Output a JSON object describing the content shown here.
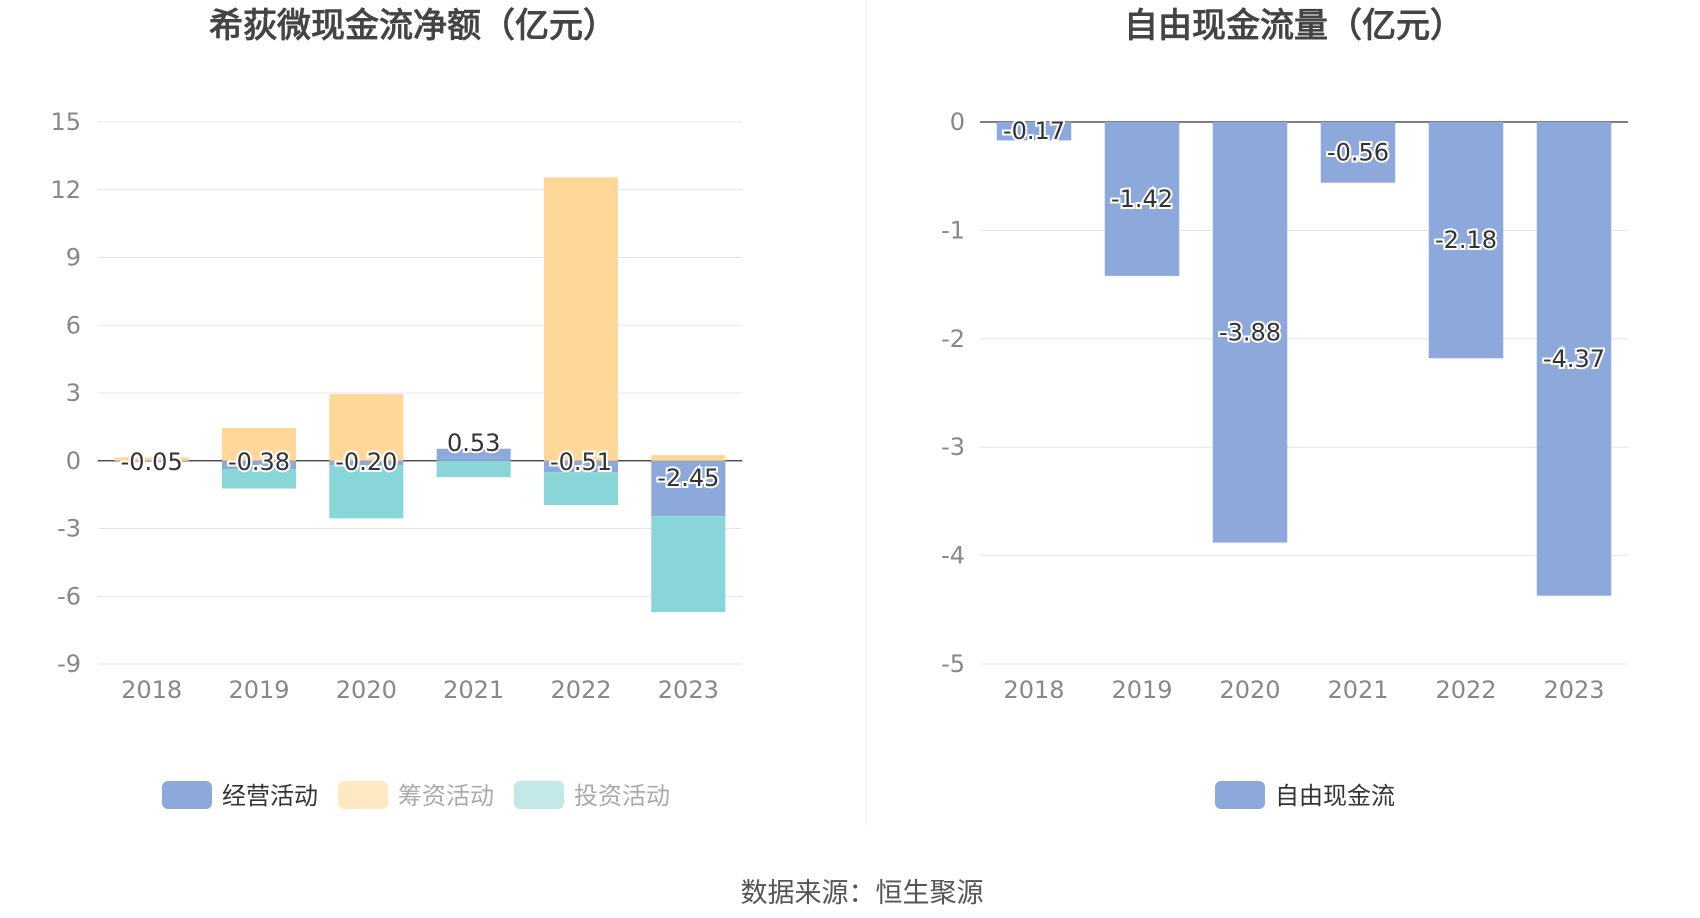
{
  "charts": [
    {
      "title": "希荻微现金流净额（亿元）",
      "legend": [
        {
          "name": "经营活动",
          "color": "#8DA9DB",
          "muted": false
        },
        {
          "name": "筹资活动",
          "color": "#FFE9C2",
          "muted": true
        },
        {
          "name": "投资活动",
          "color": "#C3E8E8",
          "muted": true
        }
      ]
    },
    {
      "title": "自由现金流量（亿元）",
      "legend": [
        {
          "name": "自由现金流",
          "color": "#8DA9DB",
          "muted": false
        }
      ]
    }
  ],
  "source": "数据来源：恒生聚源",
  "chart_data": [
    {
      "type": "bar",
      "stacked": true,
      "title": "希荻微现金流净额（亿元）",
      "categories": [
        "2018",
        "2019",
        "2020",
        "2021",
        "2022",
        "2023"
      ],
      "ylim": [
        -9,
        15
      ],
      "yticks": [
        15,
        12,
        9,
        6,
        3,
        0,
        -3,
        -6,
        -9
      ],
      "grid": true,
      "legend_position": "bottom",
      "series": [
        {
          "name": "经营活动",
          "color": "#8DA9DB",
          "values": [
            -0.05,
            -0.38,
            -0.2,
            0.53,
            -0.51,
            -2.45
          ],
          "labels": [
            "-0.05",
            "-0.38",
            "-0.20",
            "0.53",
            "-0.51",
            "-2.45"
          ]
        },
        {
          "name": "筹资活动",
          "color": "#FFD899",
          "values": [
            0.15,
            1.45,
            2.95,
            0.0,
            12.55,
            0.25
          ]
        },
        {
          "name": "投资活动",
          "color": "#89D6D8",
          "values": [
            0.0,
            -0.85,
            -2.35,
            -0.72,
            -1.45,
            -4.25
          ]
        }
      ]
    },
    {
      "type": "bar",
      "title": "自由现金流量（亿元）",
      "categories": [
        "2018",
        "2019",
        "2020",
        "2021",
        "2022",
        "2023"
      ],
      "ylim": [
        -5,
        0
      ],
      "yticks": [
        0,
        -1,
        -2,
        -3,
        -4,
        -5
      ],
      "grid": true,
      "legend_position": "bottom",
      "series": [
        {
          "name": "自由现金流",
          "color": "#8DA9DB",
          "values": [
            -0.17,
            -1.42,
            -3.88,
            -0.56,
            -2.18,
            -4.37
          ],
          "labels": [
            "-0.17",
            "-1.42",
            "-3.88",
            "-0.56",
            "-2.18",
            "-4.37"
          ]
        }
      ]
    }
  ]
}
